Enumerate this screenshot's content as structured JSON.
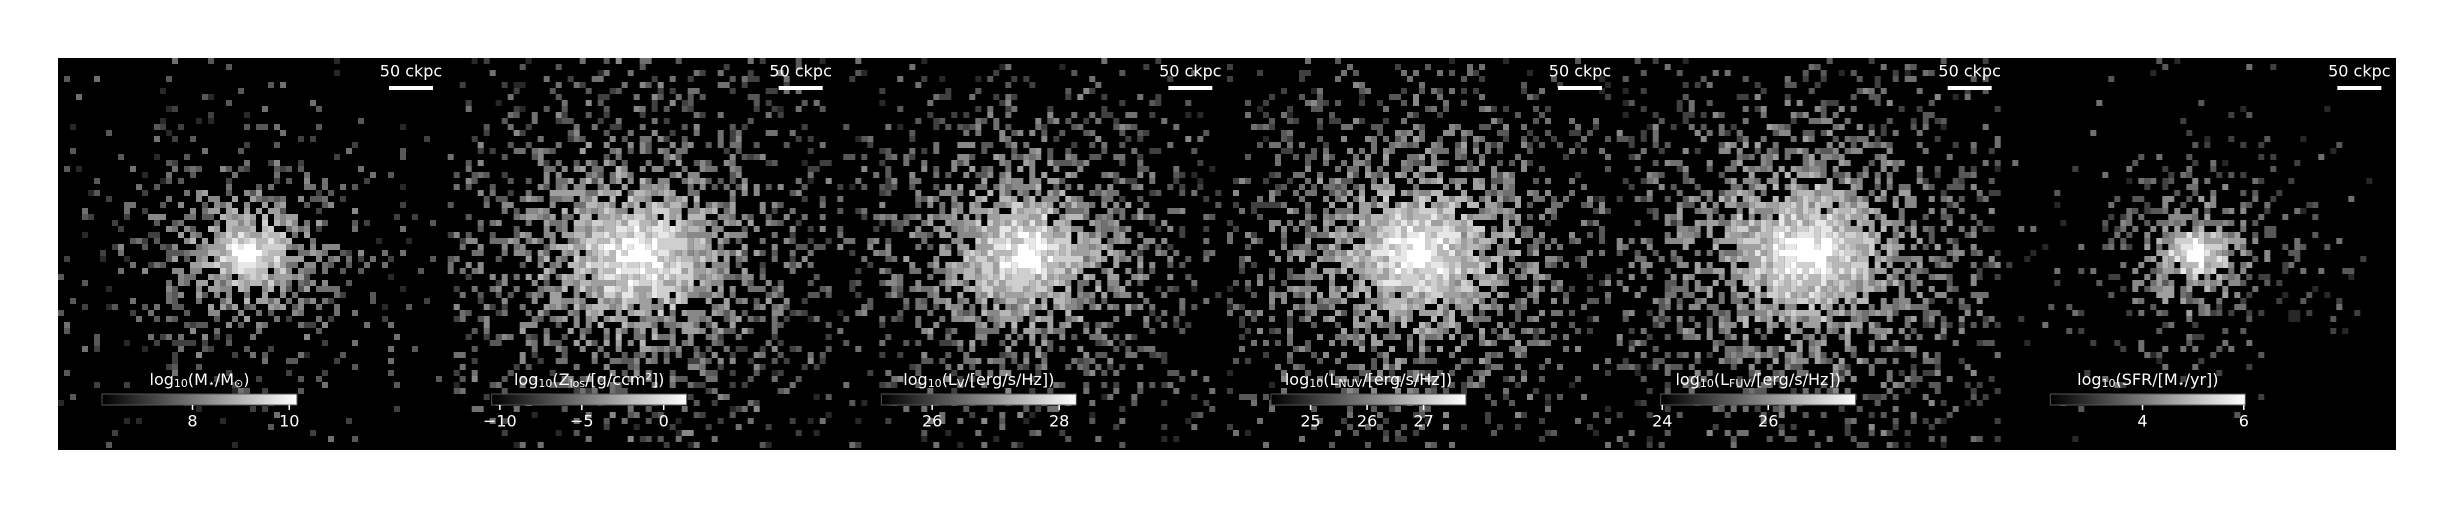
{
  "chart_data": {
    "type": "image-grid",
    "panels": [
      {
        "scale_bar": "50 ckpc",
        "label": [
          "log",
          "10",
          "(M",
          "⋆",
          "/M",
          "⊙",
          ")"
        ],
        "clim": [
          6.13,
          10.16
        ],
        "ticks": [
          8,
          10
        ]
      },
      {
        "scale_bar": "50 ckpc",
        "label": [
          "log",
          "10",
          "(Z",
          "los",
          "/[g/ccm²])"
        ],
        "clim": [
          -10.5,
          1.4
        ],
        "ticks": [
          {
            "value": -10,
            "label": "−10"
          },
          {
            "value": -5,
            "label": "−5"
          },
          0
        ]
      },
      {
        "scale_bar": "50 ckpc",
        "label": [
          "log",
          "10",
          "(L",
          "V",
          "/[erg/s/Hz])"
        ],
        "clim": [
          25.2,
          28.27
        ],
        "ticks": [
          26,
          28
        ]
      },
      {
        "scale_bar": "50 ckpc",
        "label": [
          "log",
          "10",
          "(L",
          "NUV",
          "/[erg/s/Hz])"
        ],
        "clim": [
          24.3,
          27.75
        ],
        "ticks": [
          25,
          26,
          27
        ]
      },
      {
        "scale_bar": "50 ckpc",
        "label": [
          "log",
          "10",
          "(L",
          "FUV",
          "/[erg/s/Hz])"
        ],
        "clim": [
          23.97,
          27.65
        ],
        "ticks": [
          24,
          26
        ]
      },
      {
        "scale_bar": "50 ckpc",
        "label": [
          "log",
          "10",
          "(SFR/[M",
          "⋆",
          "/yr])"
        ],
        "clim": [
          2.18,
          6.03
        ],
        "ticks": [
          4,
          6
        ]
      }
    ]
  }
}
